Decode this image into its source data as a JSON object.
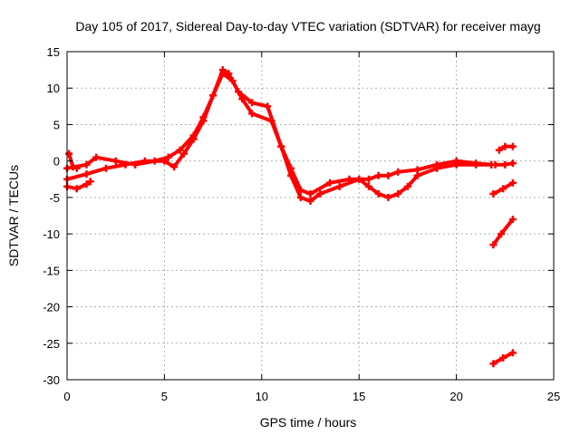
{
  "chart_data": {
    "type": "scatter",
    "title": "Day 105 of 2017, Sidereal Day-to-day VTEC variation (SDTVAR) for receiver mayg",
    "xlabel": "GPS time / hours",
    "ylabel": "SDTVAR / TECUs",
    "xlim": [
      0,
      25
    ],
    "ylim": [
      -30,
      15
    ],
    "xticks": [
      "0",
      "5",
      "10",
      "15",
      "20",
      "25"
    ],
    "yticks": [
      "15",
      "10",
      "5",
      "0",
      "-5",
      "-10",
      "-15",
      "-20",
      "-25",
      "-30"
    ],
    "grid": true,
    "marker_color": "#ff0000",
    "series": [
      {
        "name": "trace-main-upper",
        "x": [
          0.0,
          1.0,
          1.5,
          2.5,
          3.5,
          4.5,
          5.2,
          5.8,
          6.5,
          7.0,
          7.5,
          8.0,
          8.3,
          8.8,
          9.5,
          10.3,
          11.0,
          11.5,
          12.0,
          12.5,
          13.5,
          14.5,
          15.5,
          16.0,
          16.5,
          17.0,
          18.0,
          19.0,
          20.0,
          21.0,
          21.8
        ],
        "y": [
          -1.0,
          -0.5,
          0.5,
          0.0,
          -0.5,
          0.0,
          0.5,
          1.5,
          3.5,
          6.0,
          9.0,
          12.5,
          12.0,
          9.5,
          8.0,
          7.5,
          2.0,
          -1.0,
          -4.0,
          -4.5,
          -3.0,
          -2.5,
          -2.5,
          -2.0,
          -2.0,
          -1.5,
          -1.2,
          -0.5,
          0.0,
          -0.3,
          -0.5
        ]
      },
      {
        "name": "trace-main-lower",
        "x": [
          0.0,
          1.0,
          2.0,
          3.0,
          4.0,
          5.0,
          5.5,
          6.0,
          6.5,
          7.0,
          7.5,
          8.0,
          8.5,
          9.0,
          9.5,
          10.5,
          11.0,
          11.5,
          12.0,
          12.5,
          13.0,
          14.0,
          15.0,
          15.5,
          16.0,
          16.5,
          17.0,
          17.5,
          18.0,
          19.0,
          20.0,
          21.0,
          21.8
        ],
        "y": [
          -2.5,
          -1.8,
          -1.0,
          -0.5,
          0.0,
          0.0,
          -0.8,
          1.0,
          3.0,
          5.5,
          9.0,
          12.0,
          11.0,
          8.5,
          6.5,
          5.5,
          2.0,
          -2.0,
          -5.0,
          -5.5,
          -4.5,
          -3.5,
          -2.5,
          -3.5,
          -4.5,
          -5.0,
          -4.5,
          -3.5,
          -2.0,
          -1.0,
          -0.5,
          -0.5,
          -0.5
        ]
      },
      {
        "name": "trace-early-low",
        "x": [
          0.0,
          0.5,
          1.0,
          1.2
        ],
        "y": [
          -3.5,
          -3.8,
          -3.2,
          -2.8
        ]
      },
      {
        "name": "trace-early-high",
        "x": [
          0.1,
          0.3,
          0.5
        ],
        "y": [
          1.0,
          -0.8,
          -1.0
        ]
      },
      {
        "name": "trace-late-a",
        "x": [
          22.2,
          22.5,
          22.9
        ],
        "y": [
          1.5,
          2.0,
          2.0
        ]
      },
      {
        "name": "trace-late-b",
        "x": [
          22.0,
          22.5,
          22.9
        ],
        "y": [
          -0.5,
          -0.5,
          -0.3
        ]
      },
      {
        "name": "trace-late-c",
        "x": [
          21.9,
          22.4,
          22.9
        ],
        "y": [
          -4.5,
          -3.8,
          -3.0
        ]
      },
      {
        "name": "trace-late-d",
        "x": [
          21.9,
          22.3,
          22.9
        ],
        "y": [
          -11.5,
          -10.0,
          -8.0
        ]
      },
      {
        "name": "trace-late-e",
        "x": [
          21.9,
          22.4,
          22.9
        ],
        "y": [
          -27.8,
          -27.0,
          -26.3
        ]
      }
    ]
  }
}
